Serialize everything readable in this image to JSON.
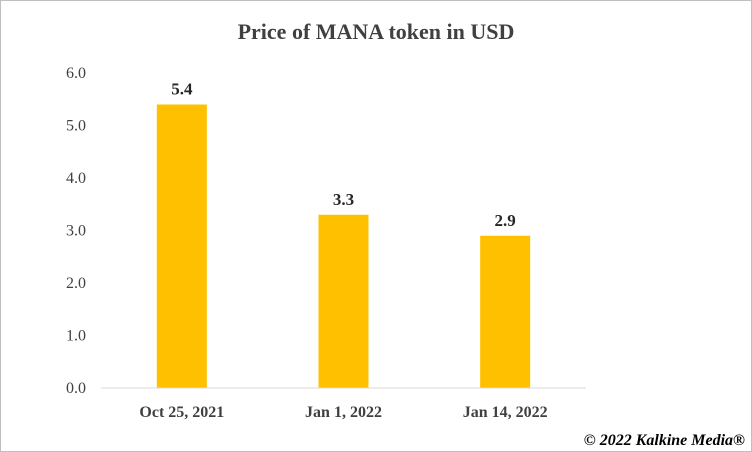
{
  "chart_data": {
    "type": "bar",
    "title": "Price of MANA token in USD",
    "categories": [
      "Oct 25, 2021",
      "Jan 1, 2022",
      "Jan 14, 2022"
    ],
    "values": [
      5.4,
      3.3,
      2.9
    ],
    "data_labels": [
      "5.4",
      "3.3",
      "2.9"
    ],
    "ylim": [
      0,
      6
    ],
    "y_ticks": [
      "0.0",
      "1.0",
      "2.0",
      "3.0",
      "4.0",
      "5.0",
      "6.0"
    ],
    "grid": false,
    "legend": "none",
    "bar_color": "#FFC000"
  },
  "credit": "© 2022 Kalkine Media®"
}
